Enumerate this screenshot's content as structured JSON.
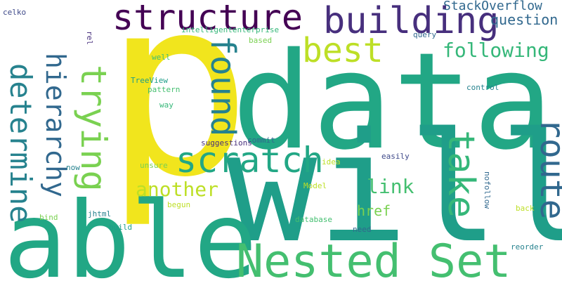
{
  "words": {
    "p": "p",
    "data": "data",
    "will": "will",
    "able": "able",
    "nested_set": "Nested Set",
    "structure": "structure",
    "building": "building",
    "hierarchy": "hierarchy",
    "determine": "determine",
    "trying": "trying",
    "found": "found",
    "best": "best",
    "scratch": "scratch",
    "take": "take",
    "route": "route",
    "following": "following",
    "another": "another",
    "link": "link",
    "href": "href",
    "stackoverflow": "StackOverflow",
    "question": "question",
    "intelligententerprise": "intelligententerprise",
    "query": "query",
    "based": "based",
    "well": "well",
    "treeview": "TreeView",
    "pattern": "pattern",
    "control": "control",
    "way": "way",
    "suggestions": "suggestions",
    "commit": "commit",
    "easily": "easily",
    "idea": "idea",
    "unsure": "unsure",
    "now": "now",
    "model": "Model",
    "begun": "begun",
    "bind": "bind",
    "jhtml": "jhtml",
    "build": "build",
    "database": "database",
    "need": "need",
    "nofollow": "nofollow",
    "back": "back",
    "reorder": "reorder",
    "celko": "celko",
    "rel": "rel"
  },
  "colors": {
    "yellow": "#f1e51d",
    "teal": "#22a785",
    "green": "#44bf70",
    "lime": "#7ad151",
    "yellowgreen": "#bddf26",
    "purple": "#440154",
    "indigo": "#472f7d",
    "blue": "#3e4989",
    "slate": "#31688e",
    "cyan": "#26828e",
    "teal2": "#1f9e89",
    "teal3": "#35b779"
  }
}
